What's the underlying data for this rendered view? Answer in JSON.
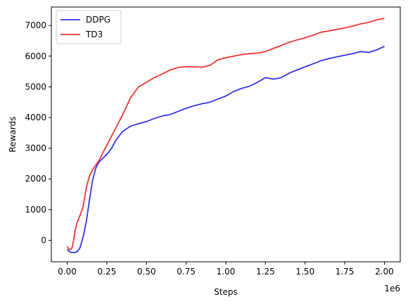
{
  "chart_data": {
    "type": "line",
    "title": "",
    "xlabel": "Steps",
    "ylabel": "Rewards",
    "x_offset_label": "1e6",
    "xlim": [
      -0.1,
      2.1
    ],
    "ylim": [
      -700,
      7600
    ],
    "x_ticks": [
      0.0,
      0.25,
      0.5,
      0.75,
      1.0,
      1.25,
      1.5,
      1.75,
      2.0
    ],
    "x_tick_labels": [
      "0.00",
      "0.25",
      "0.50",
      "0.75",
      "1.00",
      "1.25",
      "1.50",
      "1.75",
      "2.00"
    ],
    "y_ticks": [
      0,
      1000,
      2000,
      3000,
      4000,
      5000,
      6000,
      7000
    ],
    "y_tick_labels": [
      "0",
      "1000",
      "2000",
      "3000",
      "4000",
      "5000",
      "6000",
      "7000"
    ],
    "grid": false,
    "legend_position": "top-left",
    "series": [
      {
        "name": "DDPG",
        "color": "#3333ee",
        "x": [
          0.0,
          0.02,
          0.04,
          0.06,
          0.08,
          0.1,
          0.12,
          0.14,
          0.16,
          0.18,
          0.2,
          0.22,
          0.25,
          0.28,
          0.3,
          0.32,
          0.35,
          0.4,
          0.45,
          0.5,
          0.55,
          0.6,
          0.65,
          0.7,
          0.75,
          0.8,
          0.85,
          0.9,
          0.95,
          1.0,
          1.05,
          1.1,
          1.15,
          1.2,
          1.25,
          1.3,
          1.35,
          1.4,
          1.45,
          1.5,
          1.55,
          1.6,
          1.65,
          1.7,
          1.75,
          1.8,
          1.85,
          1.9,
          1.95,
          2.0
        ],
        "values": [
          -300,
          -390,
          -400,
          -380,
          -250,
          100,
          600,
          1300,
          1950,
          2350,
          2550,
          2650,
          2800,
          3000,
          3200,
          3350,
          3550,
          3720,
          3800,
          3870,
          3970,
          4050,
          4100,
          4200,
          4300,
          4380,
          4450,
          4500,
          4600,
          4700,
          4850,
          4950,
          5020,
          5150,
          5300,
          5250,
          5300,
          5450,
          5550,
          5650,
          5750,
          5850,
          5920,
          5980,
          6030,
          6080,
          6150,
          6120,
          6200,
          6320
        ]
      },
      {
        "name": "TD3",
        "color": "#ee3333",
        "x": [
          0.0,
          0.01,
          0.02,
          0.03,
          0.04,
          0.05,
          0.06,
          0.08,
          0.1,
          0.12,
          0.14,
          0.16,
          0.2,
          0.25,
          0.3,
          0.35,
          0.4,
          0.45,
          0.5,
          0.55,
          0.6,
          0.65,
          0.7,
          0.75,
          0.8,
          0.85,
          0.9,
          0.95,
          1.0,
          1.05,
          1.1,
          1.15,
          1.2,
          1.25,
          1.3,
          1.35,
          1.4,
          1.45,
          1.5,
          1.55,
          1.6,
          1.65,
          1.7,
          1.75,
          1.8,
          1.85,
          1.9,
          1.95,
          2.0
        ],
        "values": [
          -200,
          -280,
          -300,
          -250,
          0,
          300,
          550,
          800,
          1100,
          1700,
          2100,
          2300,
          2600,
          3100,
          3600,
          4100,
          4650,
          5000,
          5150,
          5300,
          5420,
          5550,
          5630,
          5660,
          5650,
          5640,
          5700,
          5880,
          5950,
          6000,
          6050,
          6080,
          6100,
          6150,
          6250,
          6350,
          6450,
          6530,
          6600,
          6680,
          6780,
          6820,
          6870,
          6920,
          6980,
          7050,
          7100,
          7180,
          7230
        ]
      }
    ]
  }
}
